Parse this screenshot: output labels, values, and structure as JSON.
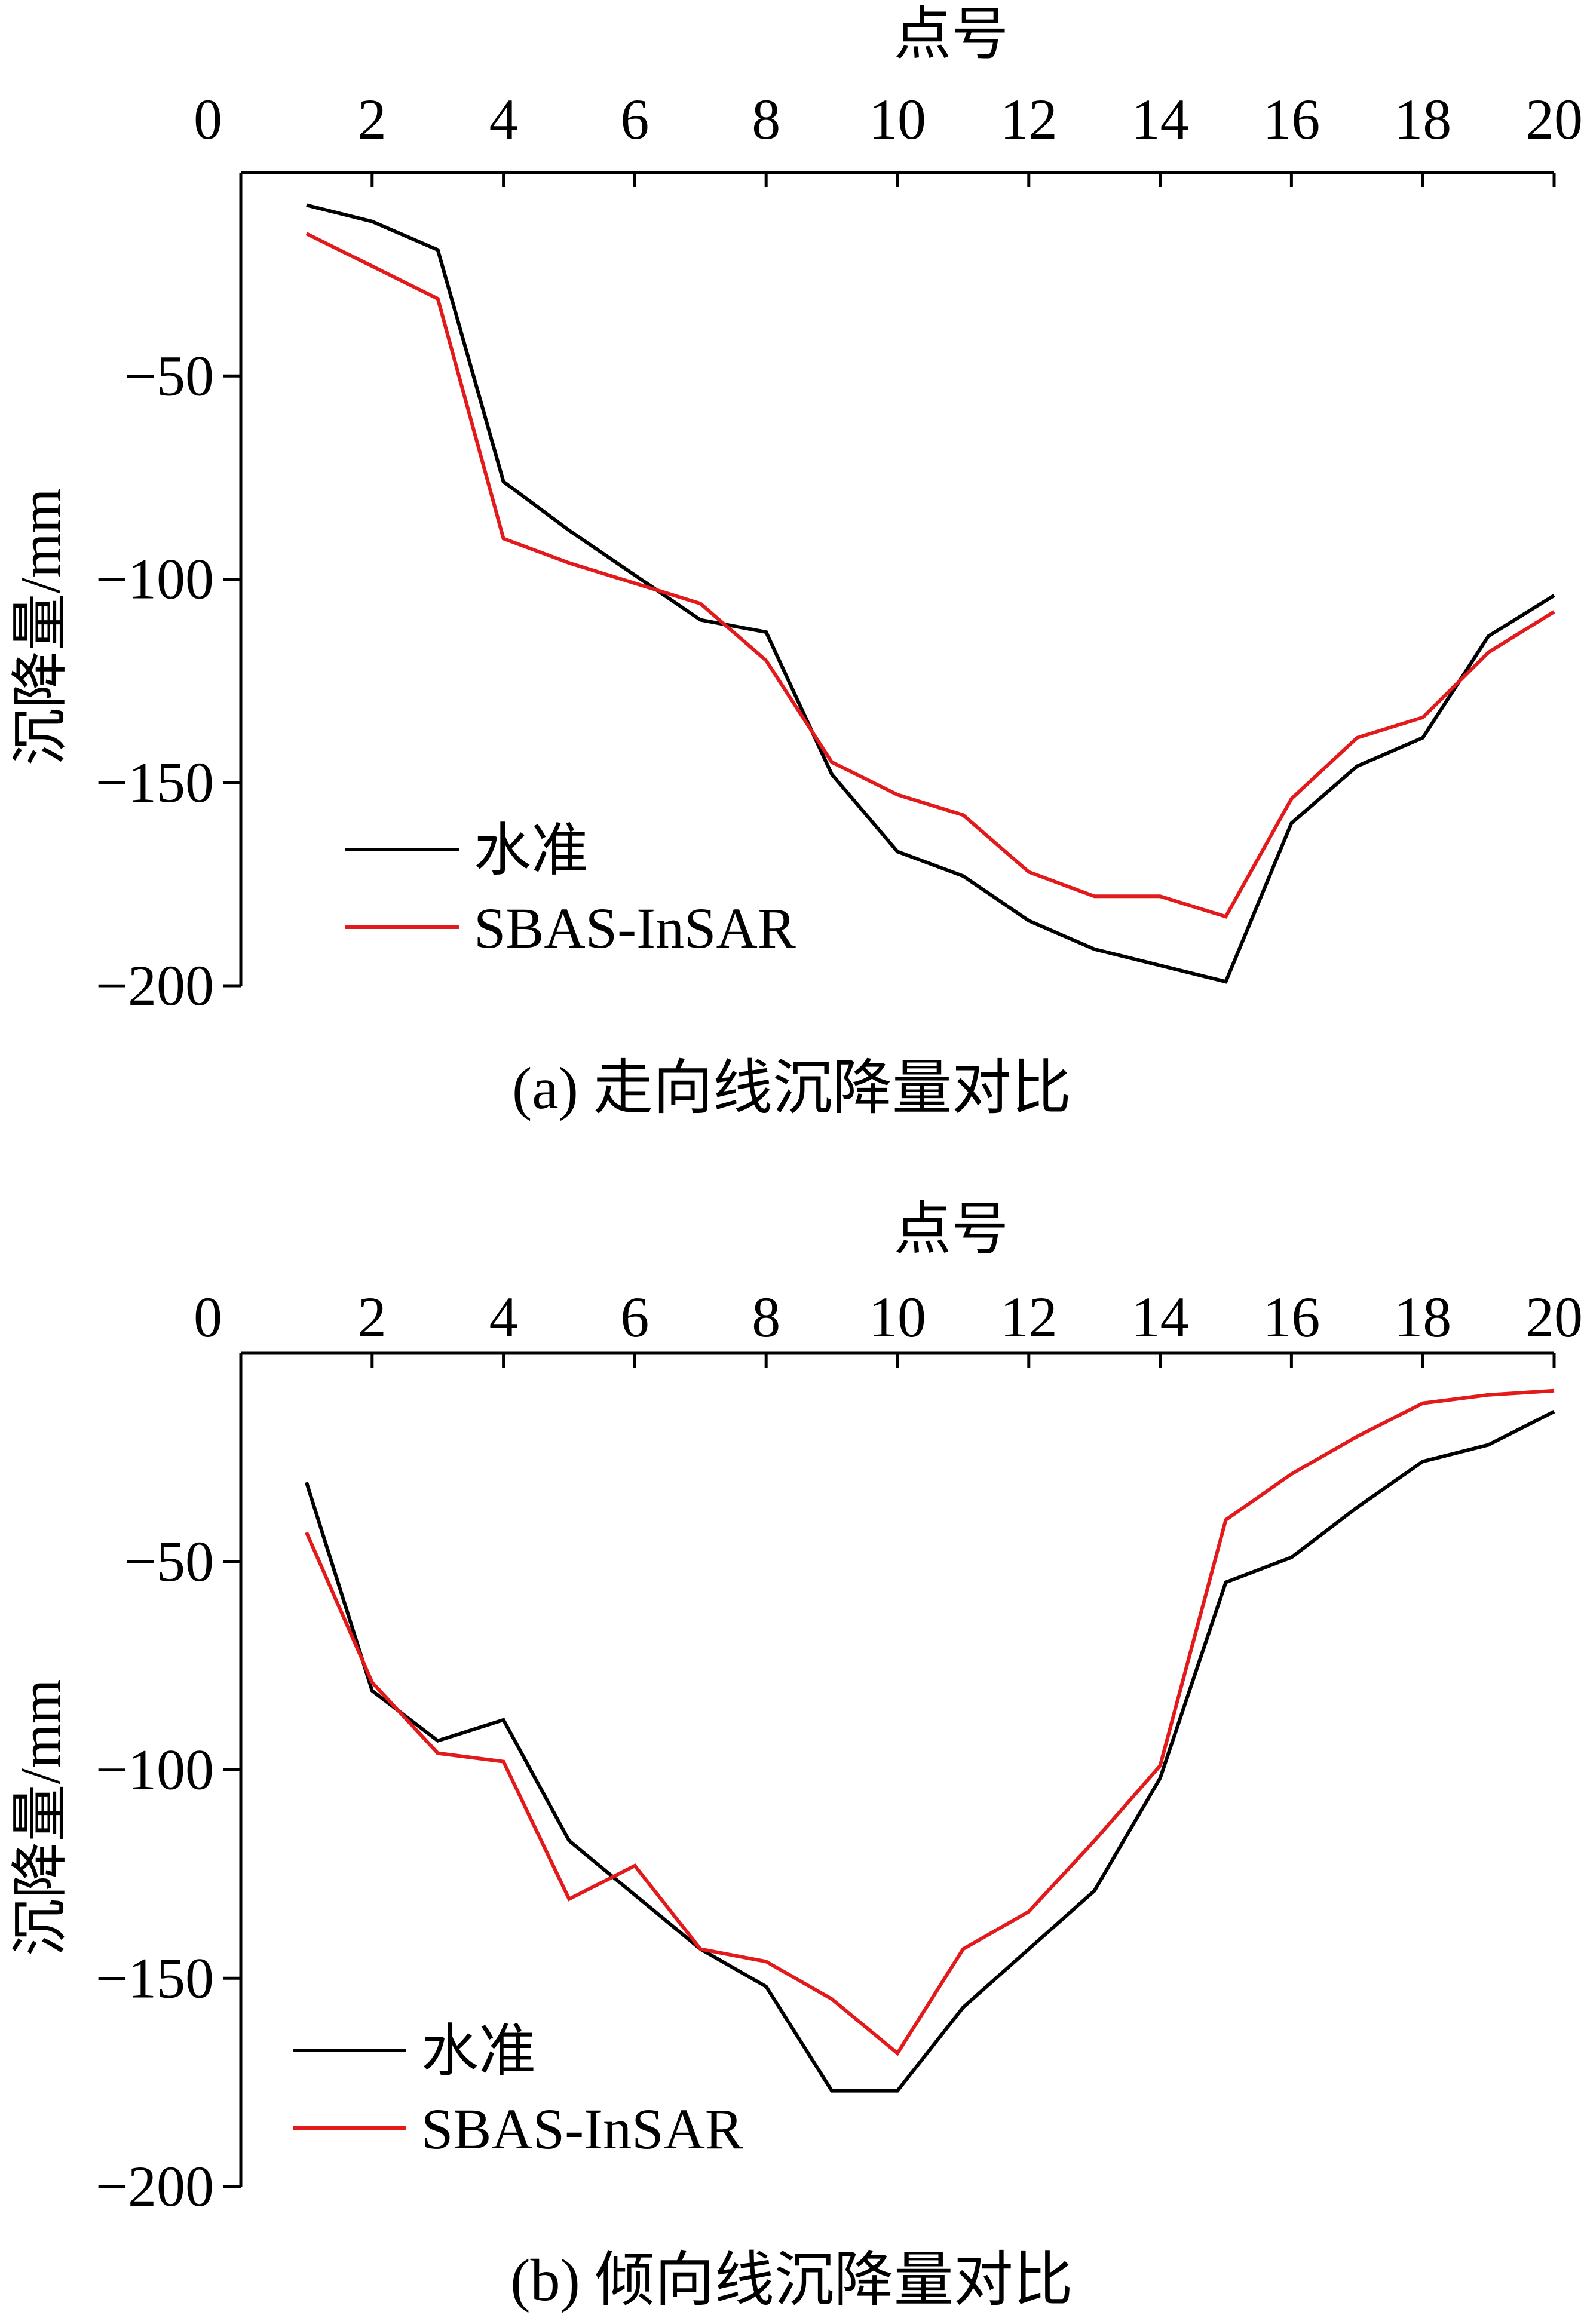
{
  "chart_data": [
    {
      "type": "line",
      "caption": "(a)  走向线沉降量对比",
      "xlabel": "点号",
      "ylabel": "沉降量/mm",
      "xlim": [
        0,
        20
      ],
      "ylim": [
        -200,
        0
      ],
      "xticks": [
        0,
        2,
        4,
        6,
        8,
        10,
        12,
        14,
        16,
        18,
        20
      ],
      "xtick_labels": [
        "0",
        "2",
        "4",
        "6",
        "8",
        "10",
        "12",
        "14",
        "16",
        "18",
        "20"
      ],
      "yticks": [
        -50,
        -100,
        -150,
        -200
      ],
      "ytick_labels": [
        "−50",
        "−100",
        "−150",
        "−200"
      ],
      "x_axis_position": "top",
      "grid": false,
      "legend_position": "bottom-left",
      "x": [
        1,
        2,
        3,
        4,
        5,
        6,
        7,
        8,
        9,
        10,
        11,
        12,
        13,
        14,
        15,
        16,
        17,
        18,
        19,
        20
      ],
      "series": [
        {
          "name": "水准",
          "color": "#000000",
          "values": [
            -8,
            -12,
            -19,
            -76,
            -88,
            -99,
            -110,
            -113,
            -148,
            -167,
            -173,
            -184,
            -191,
            -195,
            -199,
            -160,
            -146,
            -139,
            -114,
            -104
          ]
        },
        {
          "name": "SBAS-InSAR",
          "color": "#e31a1c",
          "values": [
            -15,
            -23,
            -31,
            -90,
            -96,
            -101,
            -106,
            -120,
            -145,
            -153,
            -158,
            -172,
            -178,
            -178,
            -183,
            -154,
            -139,
            -134,
            -118,
            -108
          ]
        }
      ]
    },
    {
      "type": "line",
      "caption": "(b)  倾向线沉降量对比",
      "xlabel": "点号",
      "ylabel": "沉降量/mm",
      "xlim": [
        0,
        20
      ],
      "ylim": [
        -200,
        0
      ],
      "xticks": [
        0,
        2,
        4,
        6,
        8,
        10,
        12,
        14,
        16,
        18,
        20
      ],
      "xtick_labels": [
        "0",
        "2",
        "4",
        "6",
        "8",
        "10",
        "12",
        "14",
        "16",
        "18",
        "20"
      ],
      "yticks": [
        -50,
        -100,
        -150,
        -200
      ],
      "ytick_labels": [
        "−50",
        "−100",
        "−150",
        "−200"
      ],
      "x_axis_position": "top",
      "grid": false,
      "legend_position": "bottom-left",
      "x": [
        1,
        2,
        3,
        4,
        5,
        6,
        7,
        8,
        9,
        10,
        11,
        12,
        13,
        14,
        15,
        16,
        17,
        18,
        19,
        20
      ],
      "series": [
        {
          "name": "水准",
          "color": "#000000",
          "values": [
            -31,
            -81,
            -93,
            -88,
            -117,
            -130,
            -143,
            -152,
            -177,
            -177,
            -157,
            -143,
            -129,
            -102,
            -55,
            -49,
            -37,
            -26,
            -22,
            -14
          ]
        },
        {
          "name": "SBAS-InSAR",
          "color": "#e31a1c",
          "values": [
            -43,
            -79,
            -96,
            -98,
            -131,
            -123,
            -143,
            -146,
            -155,
            -168,
            -143,
            -134,
            -117,
            -99,
            -40,
            -29,
            -20,
            -12,
            -10,
            -9
          ]
        }
      ]
    }
  ]
}
